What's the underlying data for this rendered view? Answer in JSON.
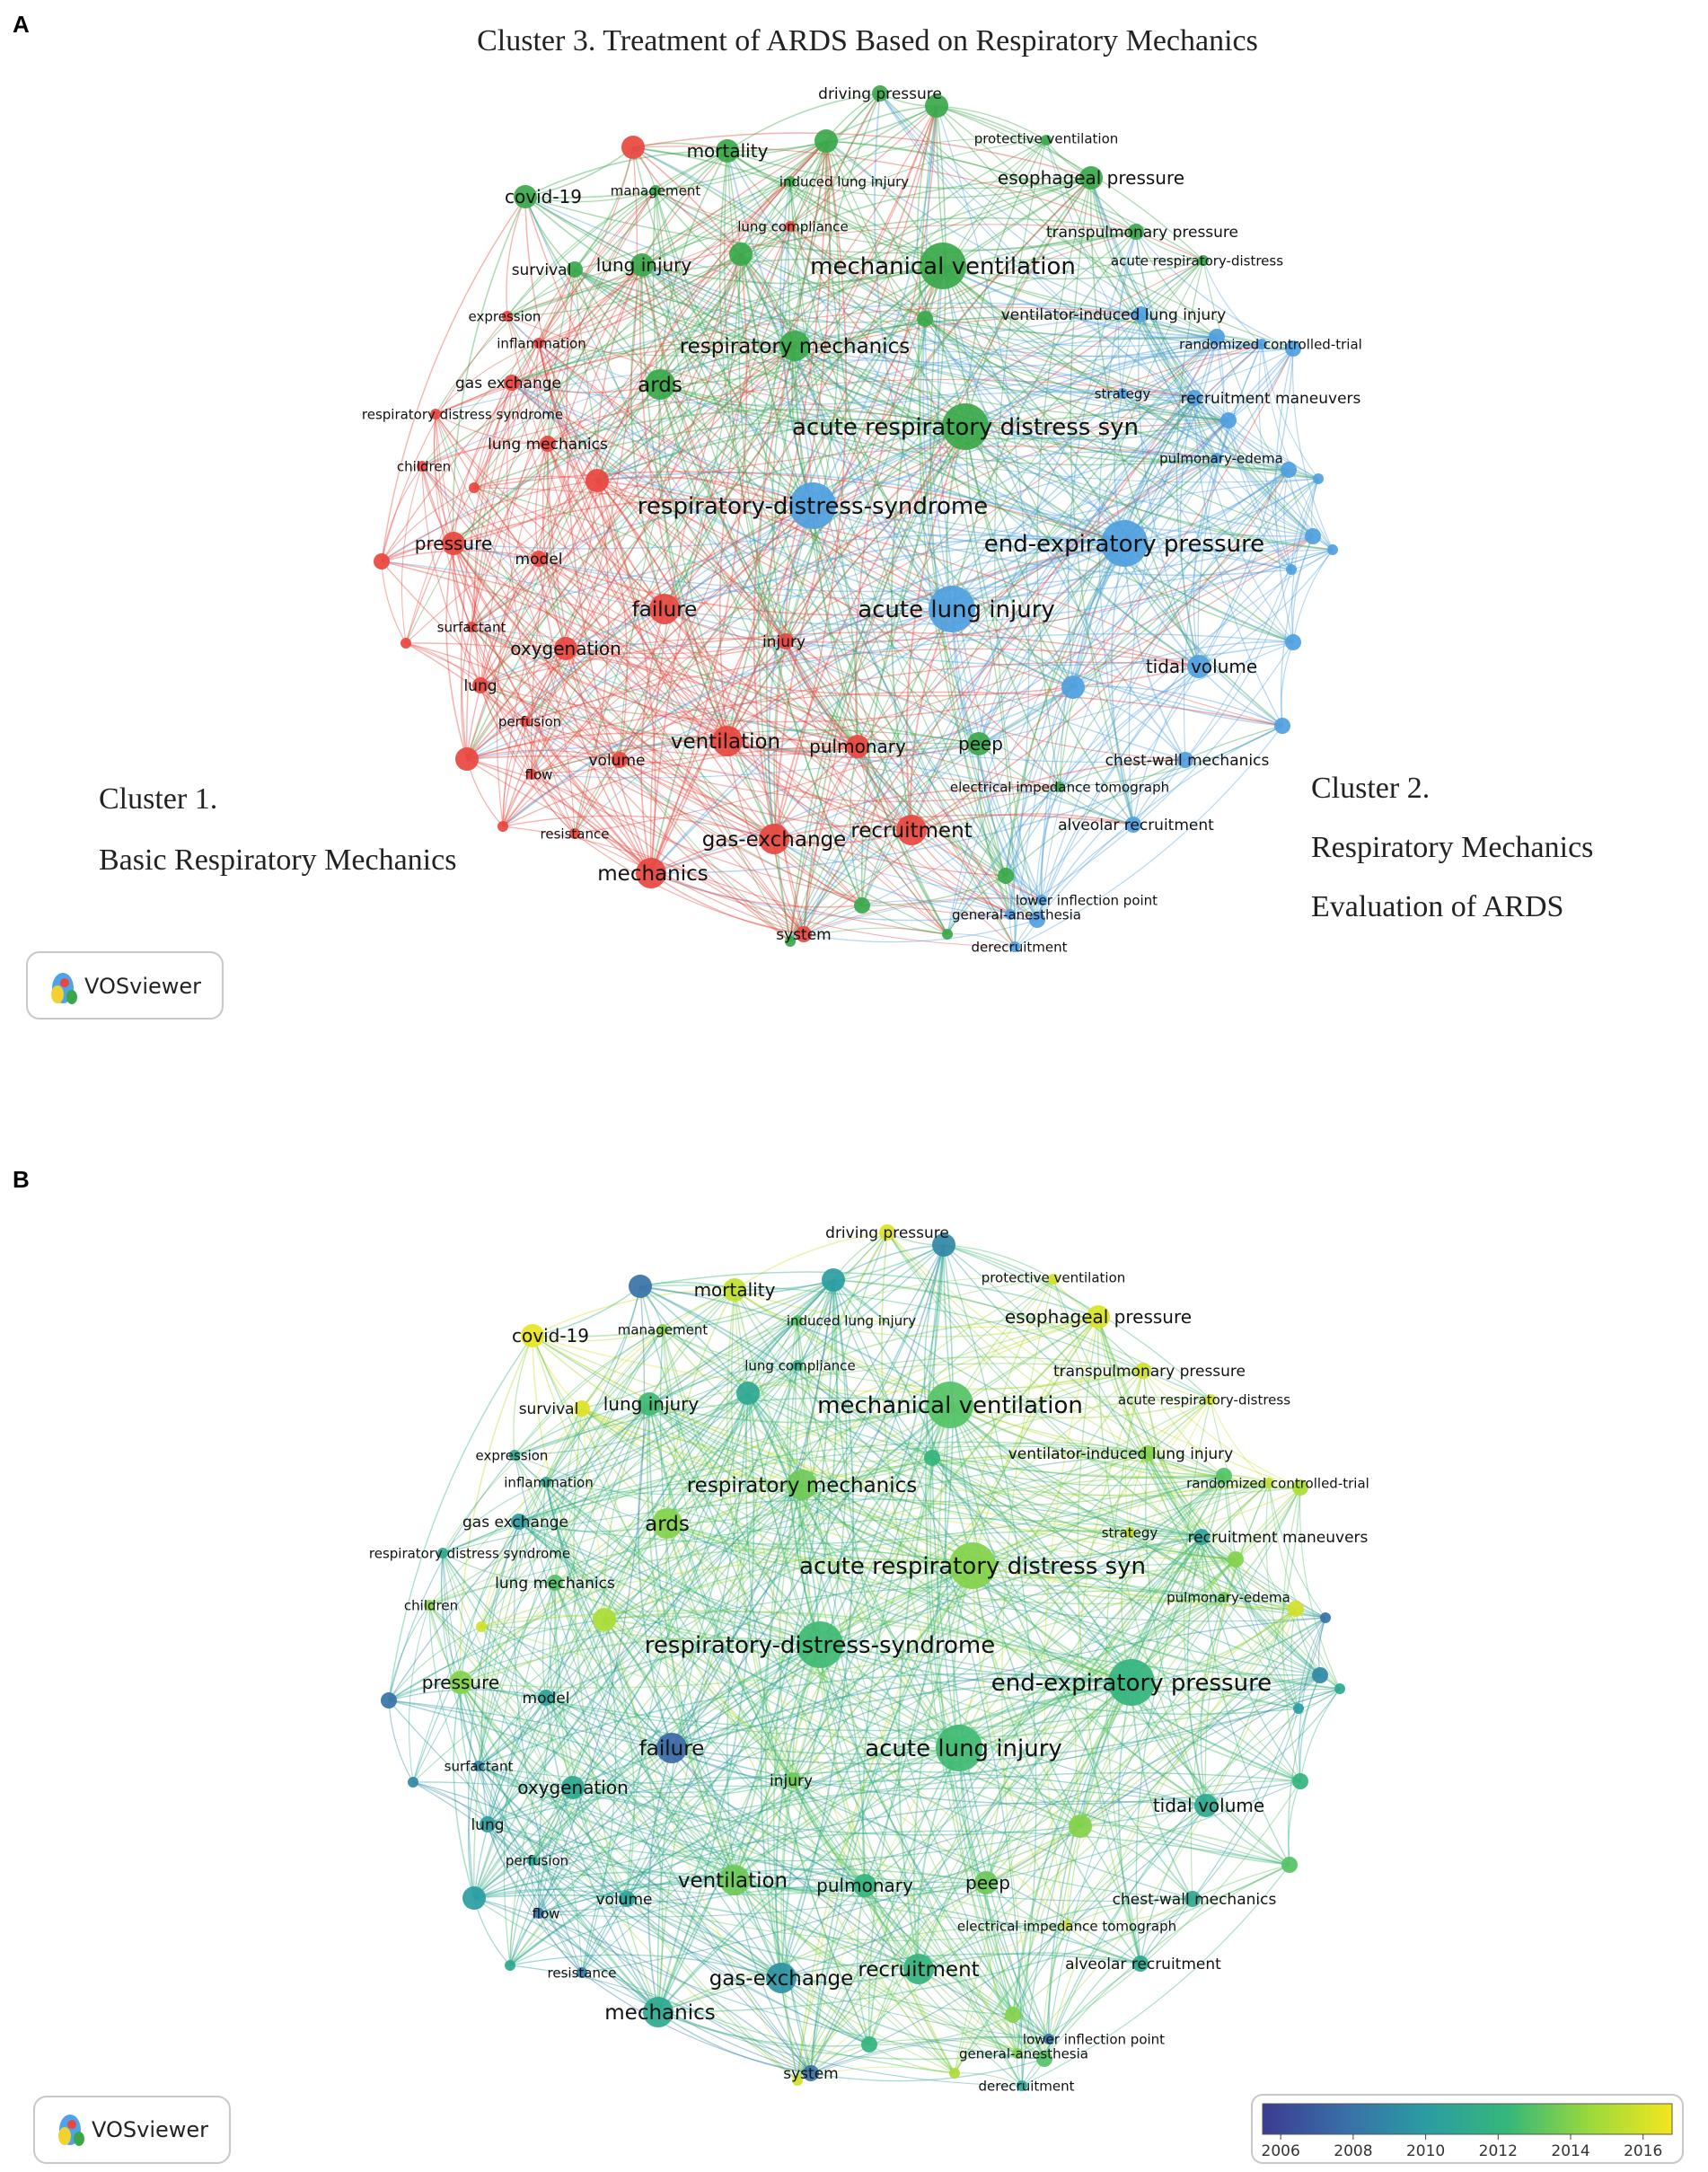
{
  "panels": [
    {
      "letter": "A",
      "title": "Cluster 3.  Treatment of ARDS  Based on Respiratory Mechanics",
      "annotations": {
        "cluster1_line1": "Cluster 1.",
        "cluster1_line2": "Basic Respiratory Mechanics",
        "cluster2_line1": "Cluster 2.",
        "cluster2_line2": "Respiratory Mechanics",
        "cluster2_line3": "Evaluation of ARDS"
      }
    },
    {
      "letter": "B"
    }
  ],
  "badge": {
    "text": "VOSviewer"
  },
  "colorbar": {
    "ticks": [
      "2006",
      "2008",
      "2010",
      "2012",
      "2014",
      "2016"
    ],
    "min_year": 2005.5,
    "max_year": 2016.8
  },
  "colors": {
    "cluster1": "#e8473f",
    "cluster2": "#4f9fe0",
    "cluster3": "#3aa84a"
  },
  "nodes": [
    {
      "label": "driving pressure",
      "cluster": 3,
      "weight": 2,
      "year": 2016.2
    },
    {
      "label": "protective ventilation",
      "cluster": 3,
      "weight": 1,
      "year": 2016.0
    },
    {
      "label": "mortality",
      "cluster": 3,
      "weight": 3,
      "year": 2015.5
    },
    {
      "label": "induced lung injury",
      "cluster": 3,
      "weight": 1,
      "year": 2013.0
    },
    {
      "label": "esophageal pressure",
      "cluster": 3,
      "weight": 3,
      "year": 2016.2
    },
    {
      "label": "covid-19",
      "cluster": 3,
      "weight": 3,
      "year": 2016.5
    },
    {
      "label": "management",
      "cluster": 3,
      "weight": 1,
      "year": 2014.0
    },
    {
      "label": "lung compliance",
      "cluster": 1,
      "weight": 1,
      "year": 2011.5
    },
    {
      "label": "transpulmonary pressure",
      "cluster": 3,
      "weight": 2,
      "year": 2016.0
    },
    {
      "label": "survival",
      "cluster": 3,
      "weight": 2,
      "year": 2016.3
    },
    {
      "label": "lung injury",
      "cluster": 3,
      "weight": 3,
      "year": 2012.5
    },
    {
      "label": "mechanical ventilation",
      "cluster": 3,
      "weight": 5,
      "year": 2013.0
    },
    {
      "label": "acute respiratory-distress",
      "cluster": 3,
      "weight": 1,
      "year": 2016.0
    },
    {
      "label": "expression",
      "cluster": 1,
      "weight": 1,
      "year": 2011.0
    },
    {
      "label": "ventilator-induced lung injury",
      "cluster": 2,
      "weight": 2,
      "year": 2014.0
    },
    {
      "label": "inflammation",
      "cluster": 1,
      "weight": 1,
      "year": 2011.0
    },
    {
      "label": "randomized controlled-trial",
      "cluster": 2,
      "weight": 1,
      "year": 2015.5
    },
    {
      "label": "respiratory mechanics",
      "cluster": 3,
      "weight": 4,
      "year": 2013.5
    },
    {
      "label": "gas exchange",
      "cluster": 1,
      "weight": 2,
      "year": 2010.0
    },
    {
      "label": "ards",
      "cluster": 3,
      "weight": 4,
      "year": 2014.0
    },
    {
      "label": "strategy",
      "cluster": 2,
      "weight": 1,
      "year": 2015.5
    },
    {
      "label": "recruitment maneuvers",
      "cluster": 2,
      "weight": 2,
      "year": 2010.5
    },
    {
      "label": "respiratory distress syndrome",
      "cluster": 1,
      "weight": 1,
      "year": 2011.0
    },
    {
      "label": "acute respiratory distress syn",
      "cluster": 3,
      "weight": 5,
      "year": 2014.0
    },
    {
      "label": "lung mechanics",
      "cluster": 1,
      "weight": 2,
      "year": 2013.0
    },
    {
      "label": "pulmonary-edema",
      "cluster": 2,
      "weight": 1,
      "year": 2013.5
    },
    {
      "label": "children",
      "cluster": 1,
      "weight": 1,
      "year": 2014.0
    },
    {
      "label": "respiratory-distress-syndrome",
      "cluster": 2,
      "weight": 5,
      "year": 2012.5
    },
    {
      "label": "pressure",
      "cluster": 1,
      "weight": 3,
      "year": 2014.0
    },
    {
      "label": "model",
      "cluster": 1,
      "weight": 2,
      "year": 2010.5
    },
    {
      "label": "end-expiratory pressure",
      "cluster": 2,
      "weight": 5,
      "year": 2012.0
    },
    {
      "label": "failure",
      "cluster": 1,
      "weight": 4,
      "year": 2007.5
    },
    {
      "label": "acute lung injury",
      "cluster": 2,
      "weight": 5,
      "year": 2012.5
    },
    {
      "label": "surfactant",
      "cluster": 1,
      "weight": 1,
      "year": 2009.0
    },
    {
      "label": "oxygenation",
      "cluster": 1,
      "weight": 3,
      "year": 2011.0
    },
    {
      "label": "injury",
      "cluster": 1,
      "weight": 2,
      "year": 2013.5
    },
    {
      "label": "tidal volume",
      "cluster": 2,
      "weight": 3,
      "year": 2011.0
    },
    {
      "label": "lung",
      "cluster": 1,
      "weight": 2,
      "year": 2010.0
    },
    {
      "label": "perfusion",
      "cluster": 1,
      "weight": 1,
      "year": 2011.0
    },
    {
      "label": "ventilation",
      "cluster": 1,
      "weight": 4,
      "year": 2013.5
    },
    {
      "label": "pulmonary",
      "cluster": 1,
      "weight": 3,
      "year": 2012.0
    },
    {
      "label": "peep",
      "cluster": 3,
      "weight": 3,
      "year": 2013.5
    },
    {
      "label": "chest-wall mechanics",
      "cluster": 2,
      "weight": 2,
      "year": 2011.0
    },
    {
      "label": "volume",
      "cluster": 1,
      "weight": 2,
      "year": 2010.5
    },
    {
      "label": "flow",
      "cluster": 1,
      "weight": 1,
      "year": 2008.0
    },
    {
      "label": "electrical impedance tomograph",
      "cluster": 3,
      "weight": 1,
      "year": 2016.0
    },
    {
      "label": "alveolar recruitment",
      "cluster": 2,
      "weight": 2,
      "year": 2011.0
    },
    {
      "label": "resistance",
      "cluster": 1,
      "weight": 1,
      "year": 2008.5
    },
    {
      "label": "gas-exchange",
      "cluster": 1,
      "weight": 4,
      "year": 2009.5
    },
    {
      "label": "recruitment",
      "cluster": 1,
      "weight": 4,
      "year": 2012.0
    },
    {
      "label": "mechanics",
      "cluster": 1,
      "weight": 4,
      "year": 2011.0
    },
    {
      "label": "general-anesthesia",
      "cluster": 2,
      "weight": 1,
      "year": 2014.0
    },
    {
      "label": "lower inflection point",
      "cluster": 2,
      "weight": 1,
      "year": 2008.0
    },
    {
      "label": "system",
      "cluster": 1,
      "weight": 2,
      "year": 2008.0
    },
    {
      "label": "derecruitment",
      "cluster": 2,
      "weight": 1,
      "year": 2010.5
    }
  ]
}
